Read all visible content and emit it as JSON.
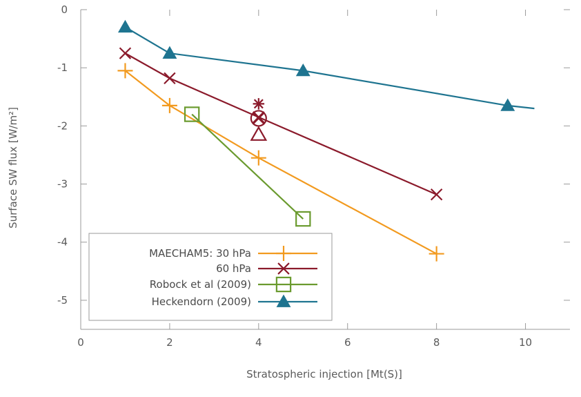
{
  "chart_data": {
    "type": "line",
    "title": "",
    "xlabel": "Stratospheric injection [Mt(S)]",
    "ylabel": "Surface SW flux [W/m²]",
    "xlim": [
      0,
      11
    ],
    "ylim": [
      -5.5,
      0
    ],
    "xticks": [
      0,
      2,
      4,
      6,
      8,
      10
    ],
    "xtick_labels": [
      "0",
      "2",
      "4",
      "6",
      "8",
      "10"
    ],
    "yticks": [
      0,
      -1,
      -2,
      -3,
      -4,
      -5
    ],
    "ytick_labels": [
      "0",
      "-1",
      "-2",
      "-3",
      "-4",
      "-5"
    ],
    "grid": false,
    "legend_position": "bottom-left",
    "series": [
      {
        "name": "MAECHAM5: 30 hPa",
        "color": "#f29a1f",
        "marker": "plus",
        "x": [
          1,
          2,
          4,
          8
        ],
        "y": [
          -1.05,
          -1.65,
          -2.55,
          -4.2
        ]
      },
      {
        "name": "60 hPa",
        "color": "#8b1a2b",
        "marker": "cross",
        "x": [
          1,
          2,
          4,
          8
        ],
        "y": [
          -0.75,
          -1.18,
          -1.85,
          -3.18
        ]
      },
      {
        "name": "Robock et al (2009)",
        "color": "#6a9a2e",
        "marker": "square",
        "x": [
          2.5,
          5
        ],
        "y": [
          -1.8,
          -3.6
        ]
      },
      {
        "name": "Heckendorn  (2009)",
        "color": "#1e7490",
        "marker": "triangle",
        "x": [
          1,
          2,
          5,
          9.6,
          10.2
        ],
        "y": [
          -0.3,
          -0.75,
          -1.05,
          -1.65,
          -1.7
        ],
        "markers_at": [
          0,
          1,
          2,
          3
        ]
      }
    ],
    "annotations": [
      {
        "x": 4,
        "y": -1.62,
        "marker": "asterisk",
        "color": "#8b1a2b"
      },
      {
        "x": 4,
        "y": -1.87,
        "marker": "circle-x",
        "color": "#8b1a2b"
      },
      {
        "x": 4,
        "y": -2.15,
        "marker": "triangle-open",
        "color": "#8b1a2b"
      }
    ]
  }
}
